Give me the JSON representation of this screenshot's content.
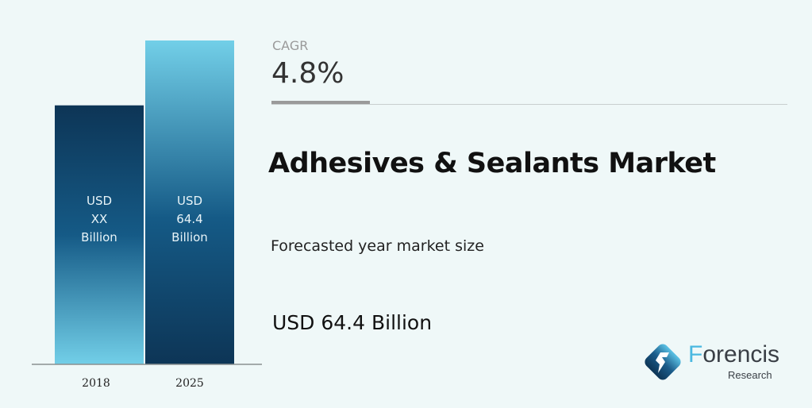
{
  "chart_data": {
    "type": "bar",
    "categories": [
      "2018",
      "2025"
    ],
    "values": [
      51.5,
      64.4
    ],
    "bar_labels": [
      [
        "USD",
        "XX",
        "Billion"
      ],
      [
        "USD",
        "64.4",
        "Billion"
      ]
    ],
    "ylim": [
      0,
      64.4
    ],
    "grid": false,
    "colors": {
      "dark": "#0d3556",
      "mid": "#155a86",
      "light": "#72cfe8"
    }
  },
  "cagr": {
    "label": "CAGR",
    "value": "4.8%"
  },
  "title": "Adhesives & Sealants Market",
  "subtitle": "Forecasted year market size",
  "forecast_value": "USD 64.4 Billion",
  "logo": {
    "name_first": "F",
    "name_rest": "orencis",
    "sub": "Research"
  }
}
